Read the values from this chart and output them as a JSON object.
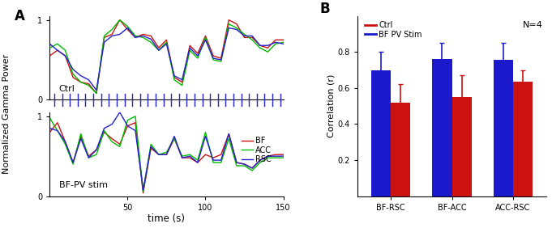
{
  "ctrl_time": [
    0,
    5,
    10,
    15,
    20,
    25,
    30,
    35,
    40,
    45,
    50,
    55,
    60,
    65,
    70,
    75,
    80,
    85,
    90,
    95,
    100,
    105,
    110,
    115,
    120,
    125,
    130,
    135,
    140,
    145,
    150
  ],
  "ctrl_BF": [
    0.55,
    0.62,
    0.55,
    0.28,
    0.22,
    0.2,
    0.08,
    0.78,
    0.82,
    1.0,
    0.88,
    0.78,
    0.82,
    0.8,
    0.65,
    0.75,
    0.28,
    0.22,
    0.68,
    0.58,
    0.8,
    0.55,
    0.52,
    1.0,
    0.95,
    0.78,
    0.78,
    0.68,
    0.65,
    0.75,
    0.75
  ],
  "ctrl_ACC": [
    0.65,
    0.7,
    0.62,
    0.32,
    0.22,
    0.18,
    0.08,
    0.8,
    0.88,
    1.0,
    0.92,
    0.8,
    0.78,
    0.72,
    0.62,
    0.72,
    0.25,
    0.18,
    0.62,
    0.52,
    0.78,
    0.5,
    0.48,
    0.95,
    0.9,
    0.82,
    0.75,
    0.65,
    0.6,
    0.7,
    0.72
  ],
  "ctrl_RSC": [
    0.7,
    0.62,
    0.55,
    0.38,
    0.3,
    0.25,
    0.12,
    0.72,
    0.8,
    0.82,
    0.9,
    0.78,
    0.8,
    0.76,
    0.62,
    0.7,
    0.3,
    0.25,
    0.65,
    0.55,
    0.75,
    0.52,
    0.5,
    0.9,
    0.88,
    0.8,
    0.8,
    0.68,
    0.68,
    0.72,
    0.7
  ],
  "stim_time": [
    0,
    5,
    10,
    15,
    20,
    25,
    30,
    35,
    40,
    45,
    50,
    55,
    60,
    65,
    70,
    75,
    80,
    85,
    90,
    95,
    100,
    105,
    110,
    115,
    120,
    125,
    130,
    135,
    140,
    145,
    150
  ],
  "stim_BF": [
    0.8,
    0.92,
    0.68,
    0.42,
    0.75,
    0.5,
    0.58,
    0.8,
    0.72,
    0.65,
    0.88,
    0.92,
    0.04,
    0.6,
    0.52,
    0.52,
    0.72,
    0.48,
    0.48,
    0.42,
    0.52,
    0.48,
    0.52,
    0.78,
    0.42,
    0.4,
    0.35,
    0.45,
    0.5,
    0.52,
    0.52
  ],
  "stim_ACC": [
    0.98,
    0.82,
    0.65,
    0.4,
    0.78,
    0.48,
    0.52,
    0.82,
    0.68,
    0.62,
    0.95,
    1.0,
    0.06,
    0.65,
    0.52,
    0.55,
    0.72,
    0.5,
    0.52,
    0.45,
    0.8,
    0.42,
    0.42,
    0.72,
    0.38,
    0.38,
    0.32,
    0.42,
    0.48,
    0.48,
    0.48
  ],
  "stim_RSC": [
    0.85,
    0.82,
    0.68,
    0.42,
    0.72,
    0.48,
    0.58,
    0.85,
    0.9,
    1.05,
    0.88,
    0.82,
    0.08,
    0.62,
    0.52,
    0.52,
    0.75,
    0.48,
    0.5,
    0.42,
    0.75,
    0.45,
    0.45,
    0.78,
    0.42,
    0.4,
    0.35,
    0.45,
    0.5,
    0.5,
    0.5
  ],
  "stim_tick_times": [
    3,
    8,
    13,
    18,
    23,
    28,
    33,
    38,
    43,
    48,
    53,
    58,
    63,
    68,
    73,
    78,
    83,
    88,
    93,
    98,
    103,
    108,
    113,
    118,
    123,
    128,
    133,
    138,
    143,
    148
  ],
  "bar_categories": [
    "BF-RSC",
    "BF-ACC",
    "ACC-RSC"
  ],
  "bar_blue": [
    0.7,
    0.76,
    0.755
  ],
  "bar_red": [
    0.52,
    0.55,
    0.635
  ],
  "err_blue": [
    0.1,
    0.09,
    0.095
  ],
  "err_red": [
    0.1,
    0.12,
    0.065
  ],
  "bar_color_blue": "#1a1acc",
  "bar_color_red": "#cc1111",
  "line_BF_color": "#cc1111",
  "line_ACC_color": "#00bb00",
  "line_RSC_color": "#2222cc",
  "ylabel_left": "Normalized Gamma Power",
  "ylabel_right": "Correlation (r)",
  "xlabel": "time (s)",
  "xlim": [
    0,
    150
  ],
  "ylim_lines": [
    0,
    1.05
  ],
  "yticks_bars": [
    0.2,
    0.4,
    0.6,
    0.8
  ],
  "label_A": "A",
  "label_B": "B",
  "ctrl_label": "Ctrl",
  "stim_label": "BF-PV stim",
  "legend_BF": "BF",
  "legend_ACC": "ACC",
  "legend_RSC": "RSC",
  "legend_ctrl": "Ctrl",
  "legend_stim": "BF PV Stim",
  "n_label": "N=4"
}
